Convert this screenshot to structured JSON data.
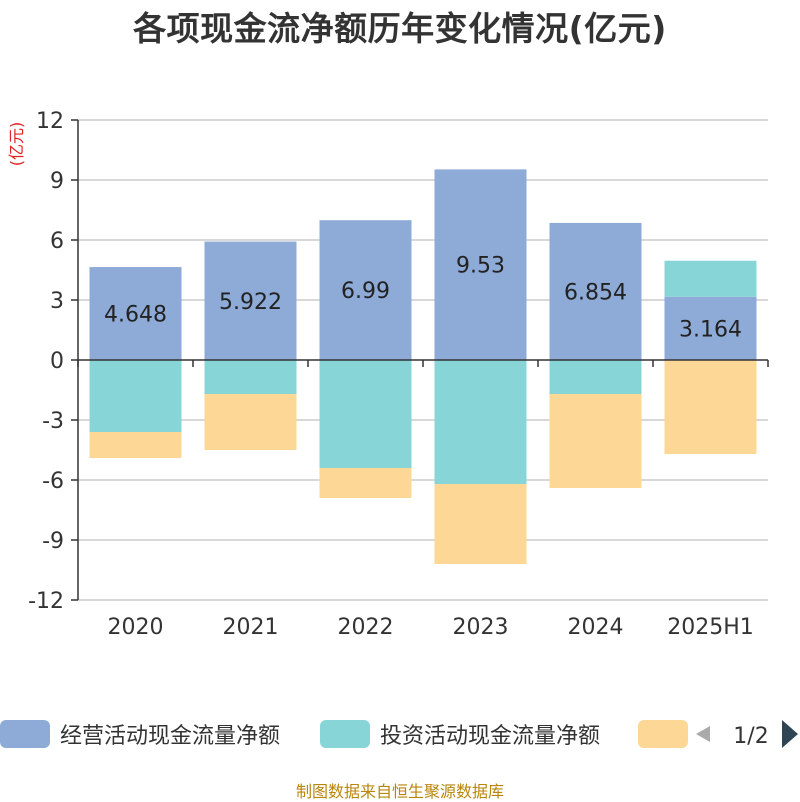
{
  "title": "各项现金流净额历年变化情况(亿元)",
  "source": "制图数据来自恒生聚源数据库",
  "chart_data": {
    "type": "bar",
    "stacked": true,
    "categories": [
      "2020",
      "2021",
      "2022",
      "2023",
      "2024",
      "2025H1"
    ],
    "ylabel": "(亿元)",
    "ylim": [
      -12,
      12
    ],
    "yticks": [
      12,
      9,
      6,
      3,
      0,
      -3,
      -6,
      -9,
      -12
    ],
    "grid": true,
    "legend_position": "bottom",
    "series": [
      {
        "name": "经营活动现金流量净额",
        "color": "#8eabd8",
        "values": [
          4.648,
          5.922,
          6.99,
          9.53,
          6.854,
          3.164
        ],
        "labels": [
          "4.648",
          "5.922",
          "6.99",
          "9.53",
          "6.854",
          "3.164"
        ]
      },
      {
        "name": "投资活动现金流量净额",
        "color": "#88d5d7",
        "values": [
          -3.6,
          -1.7,
          -5.4,
          -6.2,
          -1.7,
          1.8
        ]
      },
      {
        "color": "#fdd795",
        "values": [
          -1.3,
          -2.8,
          -1.5,
          -4.0,
          -4.7,
          -4.7
        ]
      }
    ],
    "legend_pager": "1/2"
  }
}
